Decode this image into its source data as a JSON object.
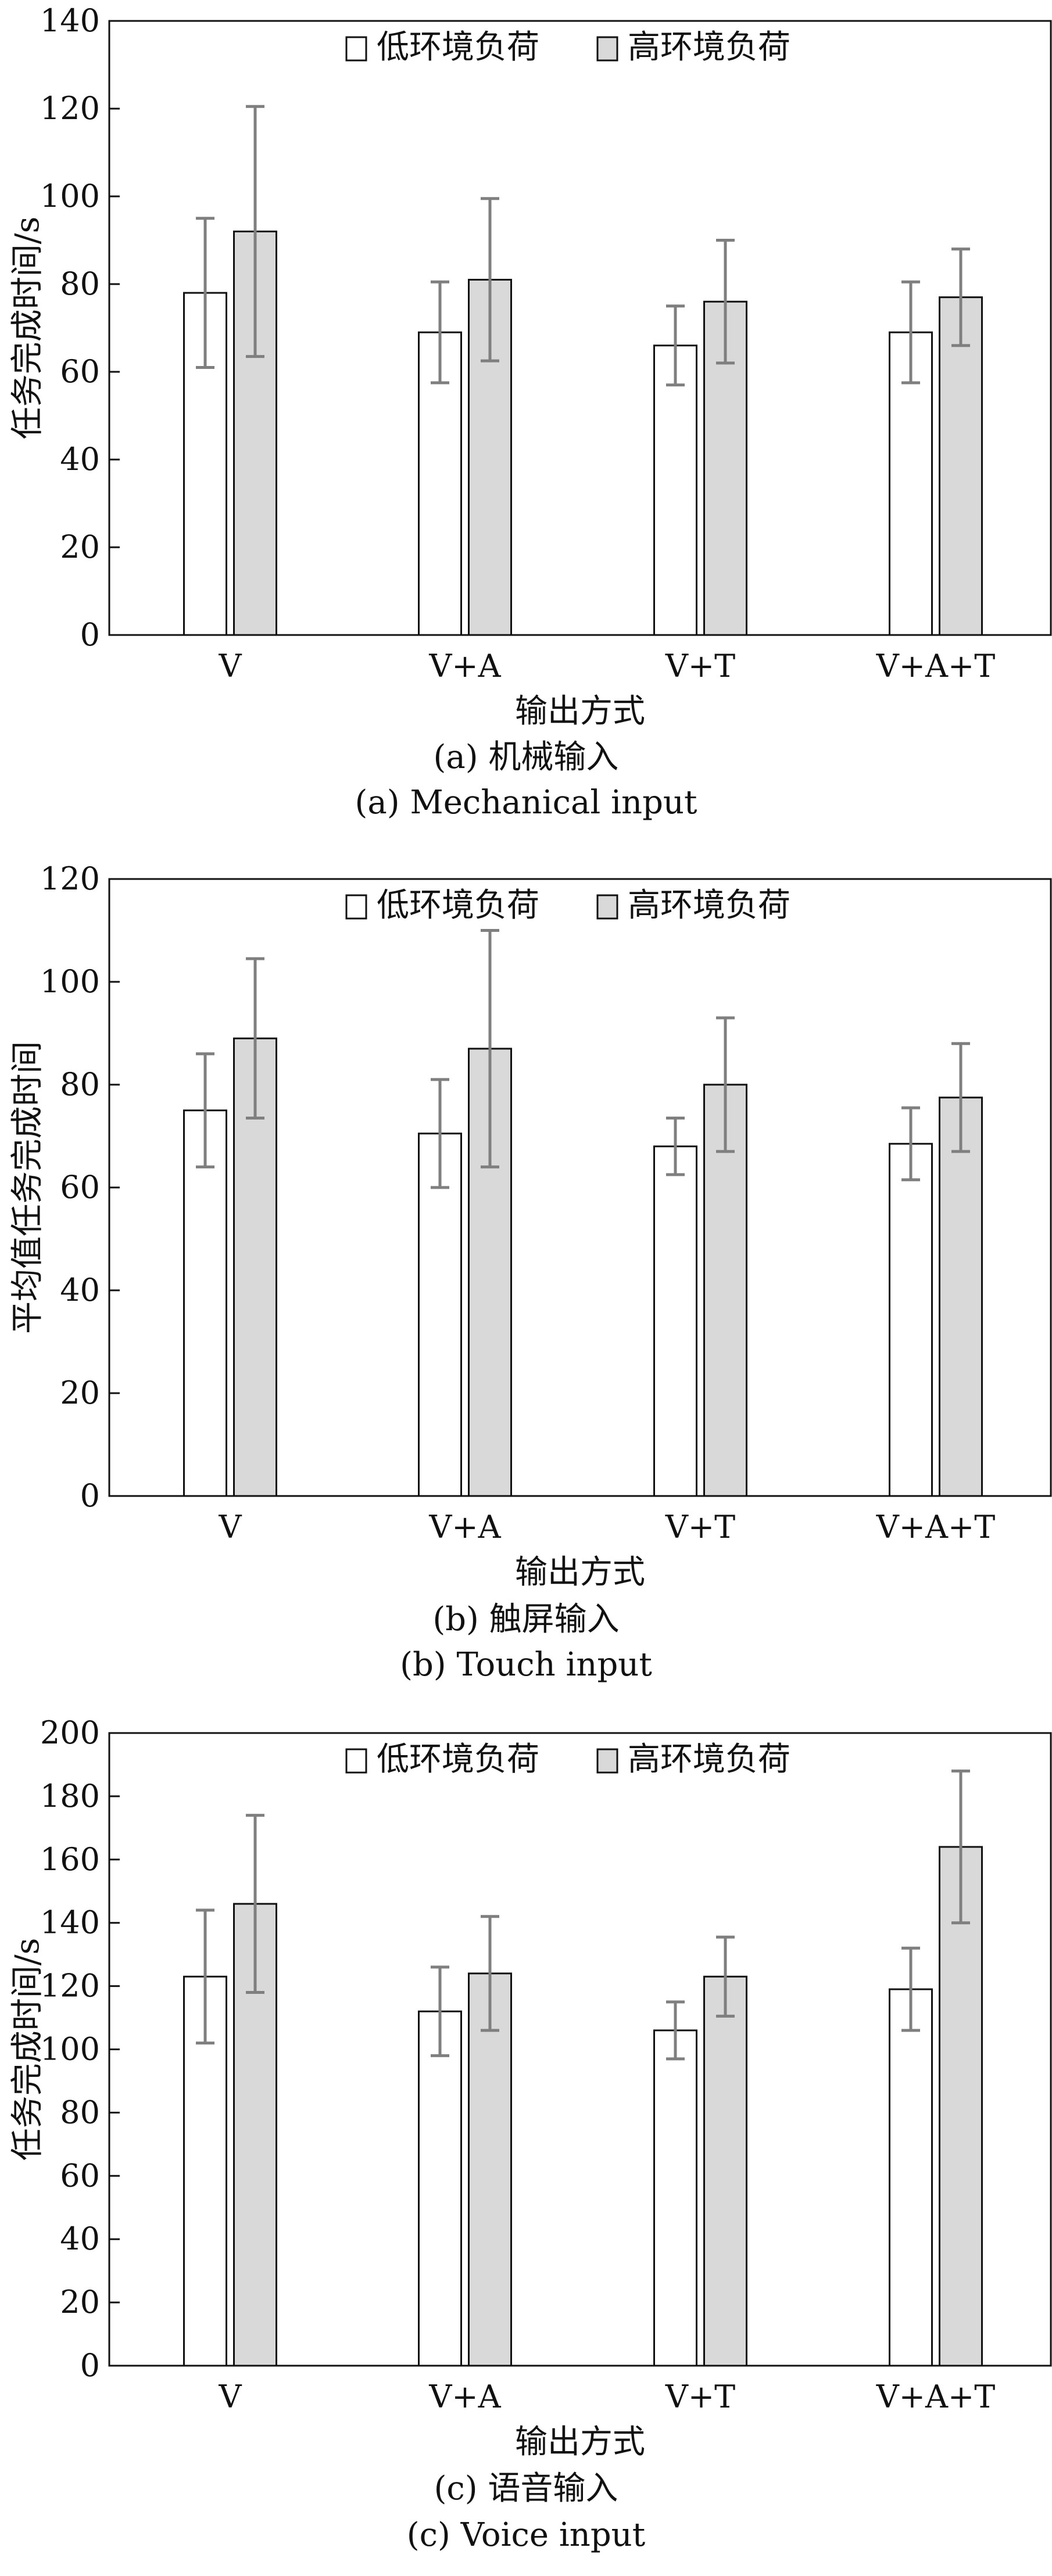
{
  "chart_data": [
    {
      "type": "bar",
      "categories": [
        "V",
        "V+A",
        "V+T",
        "V+A+T"
      ],
      "xlabel": "输出方式",
      "ylabel": "任务完成时间/s",
      "ylim": [
        0,
        140
      ],
      "yticks": [
        0,
        20,
        40,
        60,
        80,
        100,
        120,
        140
      ],
      "series": [
        {
          "name": "低环境负荷",
          "values": [
            78,
            69,
            66,
            69
          ],
          "error": [
            17,
            11.5,
            9,
            11.5
          ],
          "color": "#ffffff"
        },
        {
          "name": "高环境负荷",
          "values": [
            92,
            81,
            76,
            77
          ],
          "error": [
            28.5,
            18.5,
            14,
            11
          ],
          "color": "#d9d9d9"
        }
      ],
      "legend": "top",
      "grid": false,
      "caption_cn": "(a) 机械输入",
      "caption_en": "(a) Mechanical input"
    },
    {
      "type": "bar",
      "categories": [
        "V",
        "V+A",
        "V+T",
        "V+A+T"
      ],
      "xlabel": "输出方式",
      "ylabel": "平均值任务完成时间",
      "ylim": [
        0,
        120
      ],
      "yticks": [
        0,
        20,
        40,
        60,
        80,
        100,
        120
      ],
      "series": [
        {
          "name": "低环境负荷",
          "values": [
            75,
            70.5,
            68,
            68.5
          ],
          "error": [
            11,
            10.5,
            5.5,
            7
          ],
          "color": "#ffffff"
        },
        {
          "name": "高环境负荷",
          "values": [
            89,
            87,
            80,
            77.5
          ],
          "error": [
            15.5,
            23,
            13,
            10.5
          ],
          "color": "#d9d9d9"
        }
      ],
      "legend": "top",
      "grid": false,
      "caption_cn": "(b) 触屏输入",
      "caption_en": "(b) Touch input"
    },
    {
      "type": "bar",
      "categories": [
        "V",
        "V+A",
        "V+T",
        "V+A+T"
      ],
      "xlabel": "输出方式",
      "ylabel": "任务完成时间/s",
      "ylim": [
        0,
        200
      ],
      "yticks": [
        0,
        20,
        40,
        60,
        80,
        100,
        120,
        140,
        160,
        180,
        200
      ],
      "series": [
        {
          "name": "低环境负荷",
          "values": [
            123,
            112,
            106,
            119
          ],
          "error": [
            21,
            14,
            9,
            13
          ],
          "color": "#ffffff"
        },
        {
          "name": "高环境负荷",
          "values": [
            146,
            124,
            123,
            164
          ],
          "error": [
            28,
            18,
            12.5,
            24
          ],
          "color": "#d9d9d9"
        }
      ],
      "legend": "top",
      "grid": false,
      "caption_cn": "(c) 语音输入",
      "caption_en": "(c) Voice input"
    }
  ]
}
